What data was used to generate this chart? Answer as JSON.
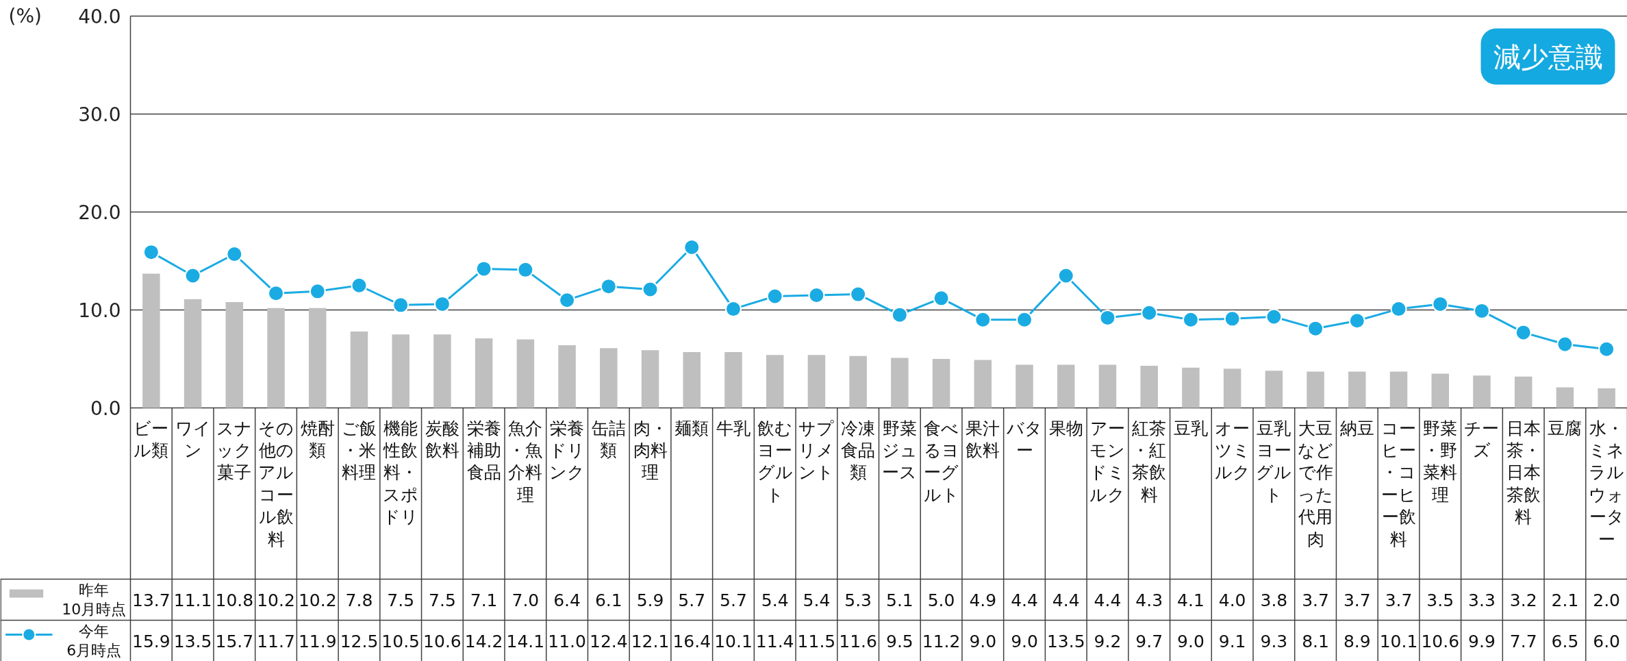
{
  "chart_data": {
    "type": "bar",
    "ylabel": "(%)",
    "categories": [
      "ビール類",
      "ワイン",
      "スナック菓子",
      "その他のアルコール飲料",
      "焼酎類",
      "ご飯・米料理",
      "機能性飲料・スポドリ",
      "炭酸飲料",
      "栄養補助食品",
      "魚介・魚介料理",
      "栄養ドリンク",
      "缶詰類",
      "肉・肉料理",
      "麺類",
      "牛乳",
      "飲むヨーグルト",
      "サプリメント",
      "冷凍食品類",
      "野菜ジュース",
      "食べるヨーグルト",
      "果汁飲料",
      "バター",
      "果物",
      "アーモンドミルク",
      "紅茶・紅茶飲料",
      "豆乳",
      "オーツミルク",
      "豆乳ヨーグルト",
      "大豆などで作った代用肉",
      "納豆",
      "コーヒー・コーヒー飲料",
      "野菜・野菜料理",
      "チーズ",
      "日本茶・日本茶飲料",
      "豆腐",
      "水・ミネラルウォーター"
    ],
    "series": [
      {
        "name": "昨年\n10月時点",
        "color": "#bfbfbf",
        "values": [
          13.7,
          11.1,
          10.8,
          10.2,
          10.2,
          7.8,
          7.5,
          7.5,
          7.1,
          7.0,
          6.4,
          6.1,
          5.9,
          5.7,
          5.7,
          5.4,
          5.4,
          5.3,
          5.1,
          5.0,
          4.9,
          4.4,
          4.4,
          4.4,
          4.3,
          4.1,
          4.0,
          3.8,
          3.7,
          3.7,
          3.7,
          3.5,
          3.3,
          3.2,
          2.1,
          2.0
        ],
        "value_labels": [
          "13.7",
          "11.1",
          "10.8",
          "10.2",
          "10.2",
          "7.8",
          "7.5",
          "7.5",
          "7.1",
          "7.0",
          "6.4",
          "6.1",
          "5.9",
          "5.7",
          "5.7",
          "5.4",
          "5.4",
          "5.3",
          "5.1",
          "5.0",
          "4.9",
          "4.4",
          "4.4",
          "4.4",
          "4.3",
          "4.1",
          "4.0",
          "3.8",
          "3.7",
          "3.7",
          "3.7",
          "3.5",
          "3.3",
          "3.2",
          "2.1",
          "2.0"
        ]
      },
      {
        "name": "今年\n6月時点",
        "type": "line",
        "color": "#1aabe3",
        "marker": "circle",
        "values": [
          15.9,
          13.5,
          15.7,
          11.7,
          11.9,
          12.5,
          10.5,
          10.6,
          14.2,
          14.1,
          11.0,
          12.4,
          12.1,
          16.4,
          10.1,
          11.4,
          11.5,
          11.6,
          9.5,
          11.2,
          9.0,
          9.0,
          13.5,
          9.2,
          9.7,
          9.0,
          9.1,
          9.3,
          8.1,
          8.9,
          10.1,
          10.6,
          9.9,
          7.7,
          6.5,
          6.0
        ],
        "value_labels": [
          "15.9",
          "13.5",
          "15.7",
          "11.7",
          "11.9",
          "12.5",
          "10.5",
          "10.6",
          "14.2",
          "14.1",
          "11.0",
          "12.4",
          "12.1",
          "16.4",
          "10.1",
          "11.4",
          "11.5",
          "11.6",
          "9.5",
          "11.2",
          "9.0",
          "9.0",
          "13.5",
          "9.2",
          "9.7",
          "9.0",
          "9.1",
          "9.3",
          "8.1",
          "8.9",
          "10.1",
          "10.6",
          "9.9",
          "7.7",
          "6.5",
          "6.0"
        ]
      }
    ],
    "ylim": [
      0,
      40
    ],
    "yticks": [
      {
        "value": 0,
        "label": "0.0"
      },
      {
        "value": 10,
        "label": "10.0"
      },
      {
        "value": 20,
        "label": "20.0"
      },
      {
        "value": 30,
        "label": "30.0"
      },
      {
        "value": 40,
        "label": "40.0"
      }
    ],
    "grid": "y",
    "legend": "bottom left",
    "annotations": [
      "減少意識"
    ]
  }
}
